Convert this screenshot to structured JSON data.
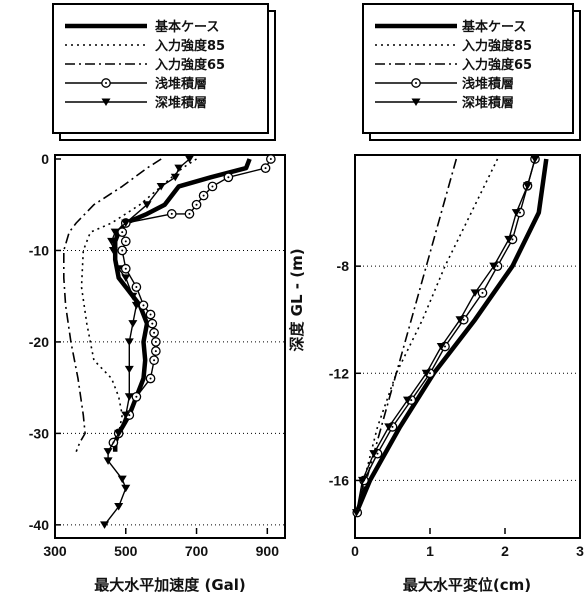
{
  "legend": [
    {
      "label": "基本ケース",
      "style": "thick"
    },
    {
      "label": "入力強度85",
      "style": "dotted"
    },
    {
      "label": "入力強度65",
      "style": "dashdot"
    },
    {
      "label": "浅堆積層",
      "style": "circle"
    },
    {
      "label": "深堆積層",
      "style": "triangle"
    }
  ],
  "chart_data": [
    {
      "type": "line",
      "xlabel": "最大水平加速度 (Gal)",
      "ylabel": "",
      "xlim": [
        300,
        950
      ],
      "ylim": [
        -41,
        0
      ],
      "xticks": [
        "300",
        "500",
        "700",
        "900"
      ],
      "yticks": [
        "0",
        "-10",
        "-20",
        "-30",
        "-40"
      ],
      "grid": "horizontal dotted at y = -10, -20, -30, -40",
      "series": [
        {
          "name": "基本ケース",
          "style": "thick",
          "points": [
            [
              850,
              0
            ],
            [
              840,
              -1
            ],
            [
              740,
              -2
            ],
            [
              650,
              -3
            ],
            [
              610,
              -5
            ],
            [
              560,
              -6
            ],
            [
              500,
              -7
            ],
            [
              480,
              -8
            ],
            [
              470,
              -9
            ],
            [
              470,
              -11
            ],
            [
              480,
              -13
            ],
            [
              500,
              -14
            ],
            [
              540,
              -16
            ],
            [
              560,
              -18
            ],
            [
              550,
              -20
            ],
            [
              555,
              -22
            ],
            [
              550,
              -24
            ],
            [
              530,
              -26
            ],
            [
              510,
              -28
            ],
            [
              480,
              -30
            ],
            [
              470,
              -31
            ],
            [
              470,
              -32
            ]
          ]
        },
        {
          "name": "入力強度85",
          "style": "dotted",
          "points": [
            [
              700,
              0
            ],
            [
              660,
              -1
            ],
            [
              600,
              -3
            ],
            [
              540,
              -5
            ],
            [
              460,
              -7
            ],
            [
              400,
              -8
            ],
            [
              380,
              -10
            ],
            [
              375,
              -14
            ],
            [
              390,
              -18
            ],
            [
              410,
              -22
            ],
            [
              460,
              -24
            ],
            [
              480,
              -26
            ],
            [
              490,
              -28
            ],
            [
              480,
              -30
            ],
            [
              460,
              -31
            ]
          ]
        },
        {
          "name": "入力強度65",
          "style": "dashdot",
          "points": [
            [
              600,
              0
            ],
            [
              560,
              -1
            ],
            [
              490,
              -3
            ],
            [
              410,
              -5
            ],
            [
              360,
              -7
            ],
            [
              340,
              -8
            ],
            [
              325,
              -10
            ],
            [
              325,
              -13
            ],
            [
              330,
              -16
            ],
            [
              345,
              -20
            ],
            [
              365,
              -24
            ],
            [
              380,
              -28
            ],
            [
              385,
              -30
            ],
            [
              370,
              -31
            ],
            [
              360,
              -32
            ]
          ]
        },
        {
          "name": "浅堆積層",
          "style": "circle",
          "points": [
            [
              910,
              0
            ],
            [
              895,
              -1
            ],
            [
              790,
              -2
            ],
            [
              745,
              -3
            ],
            [
              720,
              -4
            ],
            [
              700,
              -5
            ],
            [
              680,
              -6
            ],
            [
              630,
              -6
            ],
            [
              500,
              -7
            ],
            [
              490,
              -8
            ],
            [
              500,
              -9
            ],
            [
              490,
              -10
            ],
            [
              500,
              -12
            ],
            [
              530,
              -14
            ],
            [
              550,
              -16
            ],
            [
              570,
              -17
            ],
            [
              575,
              -18
            ],
            [
              580,
              -19
            ],
            [
              585,
              -20
            ],
            [
              585,
              -21
            ],
            [
              580,
              -22
            ],
            [
              570,
              -24
            ],
            [
              530,
              -26
            ],
            [
              510,
              -28
            ],
            [
              480,
              -30
            ],
            [
              465,
              -31
            ]
          ]
        },
        {
          "name": "深堆積層",
          "style": "triangle",
          "points": [
            [
              680,
              0
            ],
            [
              650,
              -1
            ],
            [
              640,
              -2
            ],
            [
              600,
              -3
            ],
            [
              560,
              -5
            ],
            [
              500,
              -7
            ],
            [
              470,
              -8
            ],
            [
              460,
              -9
            ],
            [
              465,
              -10
            ],
            [
              480,
              -12
            ],
            [
              500,
              -13
            ],
            [
              520,
              -15
            ],
            [
              530,
              -16
            ],
            [
              520,
              -18
            ],
            [
              510,
              -20
            ],
            [
              510,
              -23
            ],
            [
              510,
              -26
            ],
            [
              500,
              -28
            ],
            [
              480,
              -30
            ],
            [
              450,
              -32
            ],
            [
              450,
              -33
            ],
            [
              490,
              -35
            ],
            [
              500,
              -36
            ],
            [
              480,
              -38
            ],
            [
              440,
              -40
            ]
          ]
        }
      ]
    },
    {
      "type": "line",
      "xlabel": "最大水平変位(cm)",
      "ylabel": "深度 GL - (m)",
      "xlim": [
        0,
        3
      ],
      "ylim": [
        -18,
        -4
      ],
      "xticks": [
        "0",
        "1",
        "2",
        "3"
      ],
      "yticks": [
        "-8",
        "-12",
        "-16"
      ],
      "grid": "horizontal dotted at y = -8, -12, -16",
      "series": [
        {
          "name": "基本ケース",
          "style": "thick",
          "points": [
            [
              2.55,
              -4
            ],
            [
              2.45,
              -6
            ],
            [
              2.1,
              -8
            ],
            [
              1.6,
              -10
            ],
            [
              1.05,
              -12
            ],
            [
              0.6,
              -14
            ],
            [
              0.2,
              -16
            ],
            [
              0.02,
              -17.2
            ]
          ]
        },
        {
          "name": "入力強度85",
          "style": "dotted",
          "points": [
            [
              1.9,
              -4
            ],
            [
              1.55,
              -6
            ],
            [
              1.2,
              -8
            ],
            [
              0.9,
              -10
            ],
            [
              0.55,
              -12
            ],
            [
              0.3,
              -14
            ],
            [
              0.12,
              -16
            ],
            [
              0.02,
              -17.2
            ]
          ]
        },
        {
          "name": "入力強度65",
          "style": "dashdot",
          "points": [
            [
              1.35,
              -4
            ],
            [
              1.15,
              -6
            ],
            [
              0.95,
              -8
            ],
            [
              0.75,
              -10
            ],
            [
              0.55,
              -12
            ],
            [
              0.35,
              -14
            ],
            [
              0.15,
              -16
            ],
            [
              0.02,
              -17.2
            ]
          ]
        },
        {
          "name": "浅堆積層",
          "style": "circle",
          "points": [
            [
              2.4,
              -4
            ],
            [
              2.3,
              -5
            ],
            [
              2.2,
              -6
            ],
            [
              2.1,
              -7
            ],
            [
              1.9,
              -8
            ],
            [
              1.7,
              -9
            ],
            [
              1.45,
              -10
            ],
            [
              1.2,
              -11
            ],
            [
              1.0,
              -12
            ],
            [
              0.75,
              -13
            ],
            [
              0.5,
              -14
            ],
            [
              0.3,
              -15
            ],
            [
              0.12,
              -16
            ],
            [
              0.03,
              -17.2
            ]
          ]
        },
        {
          "name": "深堆積層",
          "style": "triangle",
          "points": [
            [
              2.4,
              -4
            ],
            [
              2.3,
              -5
            ],
            [
              2.15,
              -6
            ],
            [
              2.05,
              -7
            ],
            [
              1.85,
              -8
            ],
            [
              1.6,
              -9
            ],
            [
              1.4,
              -10
            ],
            [
              1.15,
              -11
            ],
            [
              0.95,
              -12
            ],
            [
              0.7,
              -13
            ],
            [
              0.45,
              -14
            ],
            [
              0.25,
              -15
            ],
            [
              0.1,
              -16
            ],
            [
              0.02,
              -17.2
            ]
          ]
        }
      ]
    }
  ]
}
